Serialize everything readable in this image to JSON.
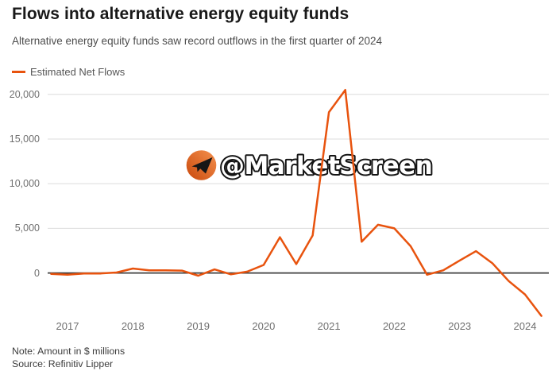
{
  "title": "Flows into alternative energy equity funds",
  "subtitle": "Alternative energy equity funds saw record outflows in the first quarter of 2024",
  "legend": {
    "label": "Estimated Net Flows"
  },
  "watermark": {
    "text": "@MarketScreen"
  },
  "notes": {
    "note": "Note: Amount in $ millions",
    "source": "Source: Refinitiv Lipper"
  },
  "colors": {
    "line": "#e8530e",
    "grid": "#dcdcdc",
    "zero_line": "#3f3f3f",
    "watermark_orange_dark": "#c9490c",
    "watermark_orange_light": "#f5914e",
    "watermark_plane": "#161616"
  },
  "chart_data": {
    "type": "line",
    "title": "Flows into alternative energy equity funds",
    "subtitle": "Alternative energy equity funds saw record outflows in the first quarter of 2024",
    "unit": "$ millions",
    "legend_position": "top-left",
    "grid": true,
    "ylim": [
      -5500,
      21000
    ],
    "y_ticks": [
      0,
      5000,
      10000,
      15000,
      20000
    ],
    "y_tick_labels": [
      "0",
      "5,000",
      "10,000",
      "15,000",
      "20,000"
    ],
    "x_tick_labels": [
      "2017",
      "2018",
      "2019",
      "2020",
      "2021",
      "2022",
      "2023",
      "2024"
    ],
    "series": [
      {
        "name": "Estimated Net Flows",
        "color": "#e8530e",
        "x": [
          "2016-Q3",
          "2016-Q4",
          "2017-Q1",
          "2017-Q2",
          "2017-Q3",
          "2017-Q4",
          "2018-Q1",
          "2018-Q2",
          "2018-Q3",
          "2018-Q4",
          "2019-Q1",
          "2019-Q2",
          "2019-Q3",
          "2019-Q4",
          "2020-Q1",
          "2020-Q2",
          "2020-Q3",
          "2020-Q4",
          "2021-Q1",
          "2021-Q2",
          "2021-Q3",
          "2021-Q4",
          "2022-Q1",
          "2022-Q2",
          "2022-Q3",
          "2022-Q4",
          "2023-Q1",
          "2023-Q2",
          "2023-Q3",
          "2023-Q4",
          "2024-Q1"
        ],
        "values": [
          -100,
          -200,
          -50,
          -50,
          50,
          500,
          300,
          300,
          270,
          -300,
          400,
          -150,
          150,
          900,
          4000,
          1000,
          4200,
          18000,
          20500,
          3500,
          5400,
          5000,
          3000,
          -200,
          300,
          1400,
          2450,
          1100,
          -900,
          -2400,
          -4800
        ]
      }
    ]
  }
}
